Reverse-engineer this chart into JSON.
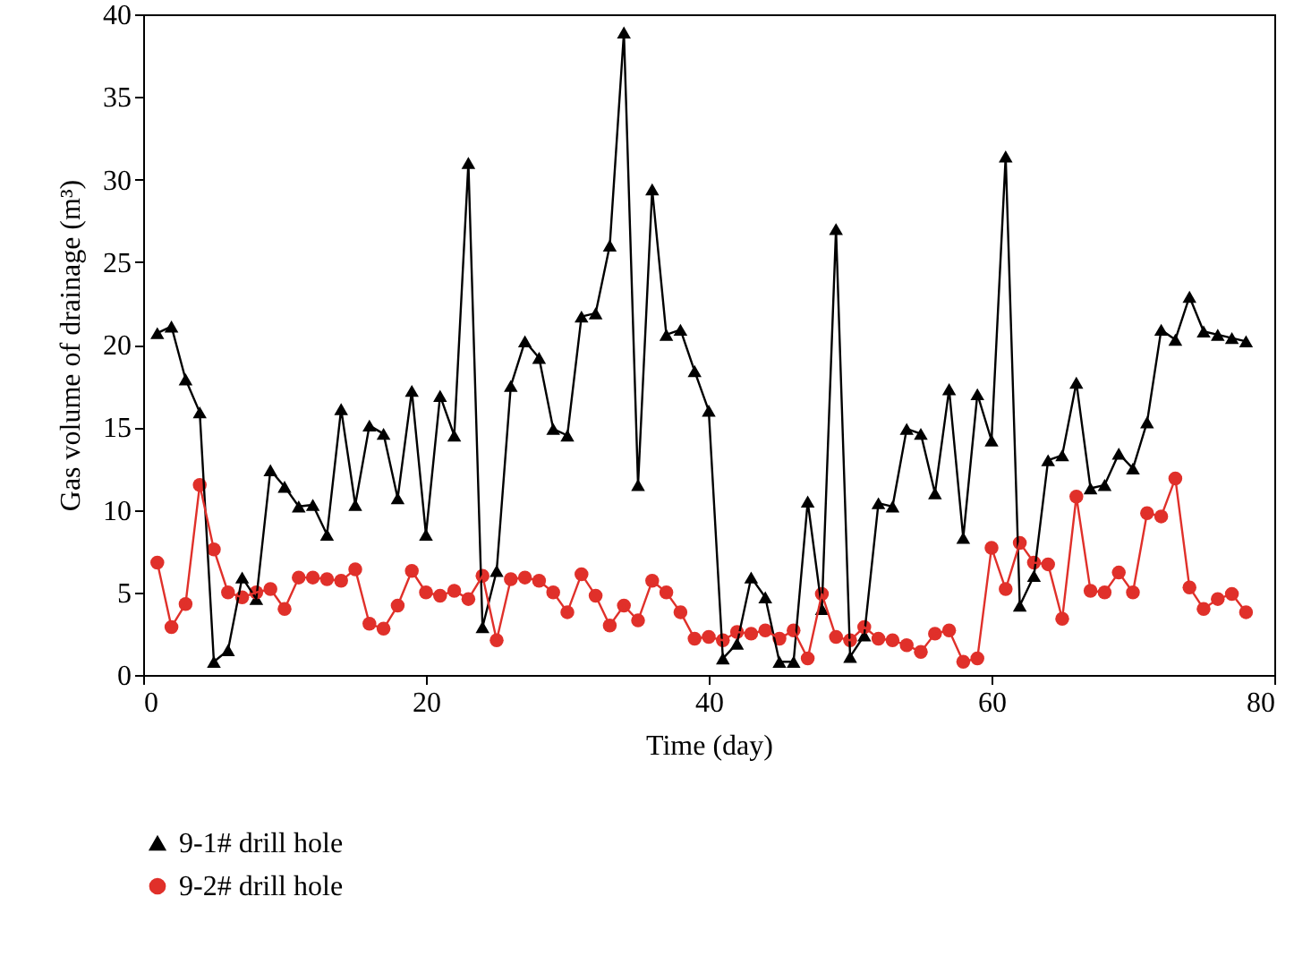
{
  "chart_data": {
    "type": "line",
    "xlabel": "Time (day)",
    "ylabel": "Gas volume of drainage (m³)",
    "x": [
      1,
      2,
      3,
      4,
      5,
      6,
      7,
      8,
      9,
      10,
      11,
      12,
      13,
      14,
      15,
      16,
      17,
      18,
      19,
      20,
      21,
      22,
      23,
      24,
      25,
      26,
      27,
      28,
      29,
      30,
      31,
      32,
      33,
      34,
      35,
      36,
      37,
      38,
      39,
      40,
      41,
      42,
      43,
      44,
      45,
      46,
      47,
      48,
      49,
      50,
      51,
      52,
      53,
      54,
      55,
      56,
      57,
      58,
      59,
      60,
      61,
      62,
      63,
      64,
      65,
      66,
      67,
      68,
      69,
      70,
      71,
      72,
      73,
      74,
      75,
      76,
      77,
      78
    ],
    "series": [
      {
        "name": "9-1# drill hole",
        "color": "#000000",
        "marker": "triangle",
        "values": [
          20.7,
          21.1,
          17.9,
          15.9,
          0.8,
          1.5,
          5.9,
          4.6,
          12.4,
          11.4,
          10.2,
          10.3,
          8.5,
          16.1,
          10.3,
          15.1,
          14.6,
          10.7,
          17.2,
          8.5,
          16.9,
          14.5,
          31.0,
          2.9,
          6.3,
          17.5,
          20.2,
          19.2,
          14.9,
          14.5,
          21.7,
          21.9,
          26.0,
          38.9,
          11.5,
          29.4,
          20.6,
          20.9,
          18.4,
          16.0,
          1.0,
          1.9,
          5.9,
          4.7,
          0.8,
          0.8,
          10.5,
          4.0,
          27.0,
          1.1,
          2.4,
          10.4,
          10.2,
          14.9,
          14.6,
          11.0,
          17.3,
          8.3,
          17.0,
          14.2,
          31.4,
          4.2,
          6.0,
          13.0,
          13.3,
          17.7,
          11.3,
          11.5,
          13.4,
          12.5,
          15.3,
          20.9,
          20.3,
          22.9,
          20.8,
          20.6,
          20.4,
          20.2
        ]
      },
      {
        "name": "9-2# drill hole",
        "color": "#e0302a",
        "marker": "circle",
        "values": [
          6.8,
          2.9,
          4.3,
          11.5,
          7.6,
          5.0,
          4.7,
          5.0,
          5.2,
          4.0,
          5.9,
          5.9,
          5.8,
          5.7,
          6.4,
          3.1,
          2.8,
          4.2,
          6.3,
          5.0,
          4.8,
          5.1,
          4.6,
          6.0,
          2.1,
          5.8,
          5.9,
          5.7,
          5.0,
          3.8,
          6.1,
          4.8,
          3.0,
          4.2,
          3.3,
          5.7,
          5.0,
          3.8,
          2.2,
          2.3,
          2.1,
          2.6,
          2.5,
          2.7,
          2.2,
          2.7,
          1.0,
          4.9,
          2.3,
          2.1,
          2.9,
          2.2,
          2.1,
          1.8,
          1.4,
          2.5,
          2.7,
          0.8,
          1.0,
          7.7,
          5.2,
          8.0,
          6.8,
          6.7,
          3.4,
          10.8,
          5.1,
          5.0,
          6.2,
          5.0,
          9.8,
          9.6,
          11.9,
          5.3,
          4.0,
          4.6,
          4.9,
          3.8
        ]
      }
    ],
    "xlim": [
      0,
      80
    ],
    "xticks": [
      0,
      20,
      40,
      60,
      80
    ],
    "ylim": [
      0,
      40
    ],
    "yticks": [
      0,
      5,
      10,
      15,
      20,
      25,
      30,
      35,
      40
    ],
    "grid": false,
    "legend": "bottom left",
    "line_style": "solid"
  }
}
